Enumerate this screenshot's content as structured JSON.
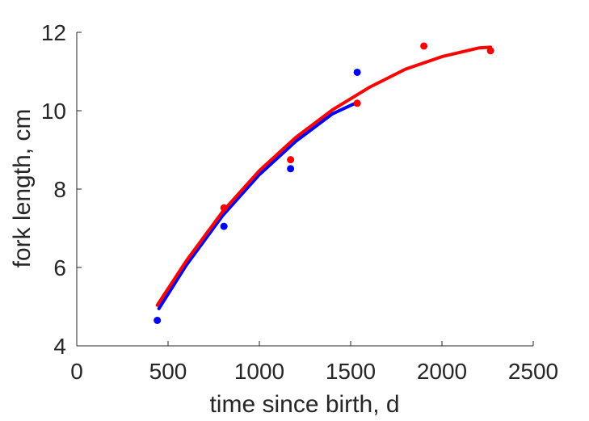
{
  "chart_data": {
    "type": "scatter",
    "title": "",
    "xlabel": "time since birth, d",
    "ylabel": "fork length, cm",
    "xlim": [
      0,
      2500
    ],
    "ylim": [
      4,
      12
    ],
    "xticks": [
      0,
      500,
      1000,
      1500,
      2000,
      2500
    ],
    "yticks": [
      4,
      6,
      8,
      10,
      12
    ],
    "grid": false,
    "legend": "none",
    "series": [
      {
        "color": "#0000ff",
        "points": {
          "x": [
            441,
            806,
            1171,
            1536
          ],
          "y": [
            4.65,
            7.05,
            8.52,
            10.98
          ]
        },
        "fit": {
          "x": [
            450,
            600,
            800,
            1000,
            1200,
            1400,
            1520
          ],
          "y": [
            4.95,
            6.06,
            7.33,
            8.37,
            9.22,
            9.92,
            10.18
          ]
        }
      },
      {
        "color": "#ff0000",
        "points": {
          "x": [
            806,
            1171,
            1536,
            1901,
            2266
          ],
          "y": [
            7.52,
            8.75,
            10.19,
            11.65,
            11.53
          ]
        },
        "fit": {
          "x": [
            441,
            600,
            800,
            1000,
            1200,
            1400,
            1600,
            1800,
            2000,
            2200,
            2266
          ],
          "y": [
            5.04,
            6.17,
            7.43,
            8.47,
            9.32,
            10.02,
            10.59,
            11.06,
            11.38,
            11.6,
            11.62
          ]
        }
      }
    ]
  }
}
